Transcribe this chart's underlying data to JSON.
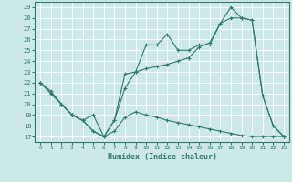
{
  "xlabel": "Humidex (Indice chaleur)",
  "bg_color": "#cce8e8",
  "grid_color": "#ffffff",
  "line_color": "#2e7b6e",
  "xlim": [
    -0.5,
    23.5
  ],
  "ylim": [
    16.5,
    29.5
  ],
  "yticks": [
    17,
    18,
    19,
    20,
    21,
    22,
    23,
    24,
    25,
    26,
    27,
    28,
    29
  ],
  "xticks": [
    0,
    1,
    2,
    3,
    4,
    5,
    6,
    7,
    8,
    9,
    10,
    11,
    12,
    13,
    14,
    15,
    16,
    17,
    18,
    19,
    20,
    21,
    22,
    23
  ],
  "series1": {
    "x": [
      0,
      1,
      2,
      3,
      4,
      5,
      6,
      7,
      8,
      9,
      10,
      11,
      12,
      13,
      14,
      15,
      16,
      17,
      18,
      19,
      20,
      21,
      22,
      23
    ],
    "y": [
      22.0,
      21.0,
      20.0,
      19.0,
      18.5,
      17.5,
      17.0,
      18.5,
      21.5,
      23.0,
      25.5,
      25.5,
      26.5,
      25.0,
      25.0,
      25.5,
      25.5,
      27.5,
      29.0,
      28.0,
      27.8,
      20.8,
      18.0,
      17.0
    ]
  },
  "series2": {
    "x": [
      0,
      1,
      2,
      3,
      4,
      5,
      6,
      7,
      8,
      9,
      10,
      11,
      12,
      13,
      14,
      15,
      16,
      17,
      18,
      19,
      20,
      21,
      22,
      23
    ],
    "y": [
      22.0,
      21.0,
      20.0,
      19.0,
      18.5,
      17.5,
      17.0,
      18.5,
      22.8,
      23.0,
      23.3,
      23.5,
      23.7,
      24.0,
      24.3,
      25.3,
      25.7,
      27.5,
      28.0,
      28.0,
      27.8,
      20.8,
      18.0,
      17.0
    ]
  },
  "series3": {
    "x": [
      0,
      1,
      2,
      3,
      4,
      5,
      6,
      7,
      8,
      9,
      10,
      11,
      12,
      13,
      14,
      15,
      16,
      17,
      18,
      19,
      20,
      21,
      22,
      23
    ],
    "y": [
      22.0,
      21.2,
      20.0,
      19.0,
      18.5,
      19.0,
      17.0,
      17.5,
      18.8,
      19.3,
      19.0,
      18.8,
      18.5,
      18.3,
      18.1,
      17.9,
      17.7,
      17.5,
      17.3,
      17.1,
      17.0,
      17.0,
      17.0,
      17.0
    ]
  }
}
